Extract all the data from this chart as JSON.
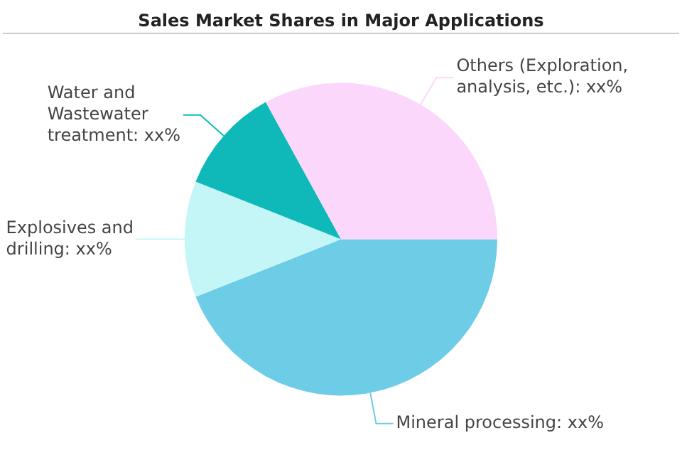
{
  "chart_data": {
    "type": "pie",
    "title": "Sales Market Shares in Major Applications",
    "categories": [
      "Mineral processing",
      "Explosives and drilling",
      "Water and Wastewater treatment",
      "Others (Exploration, analysis, etc.)"
    ],
    "values": [
      44,
      12,
      11,
      33
    ],
    "value_labels": [
      "xx%",
      "xx%",
      "xx%",
      "xx%"
    ],
    "colors": [
      "#6ecde6",
      "#c4f6f8",
      "#10b9b9",
      "#fcd7fc"
    ],
    "legend": false
  }
}
